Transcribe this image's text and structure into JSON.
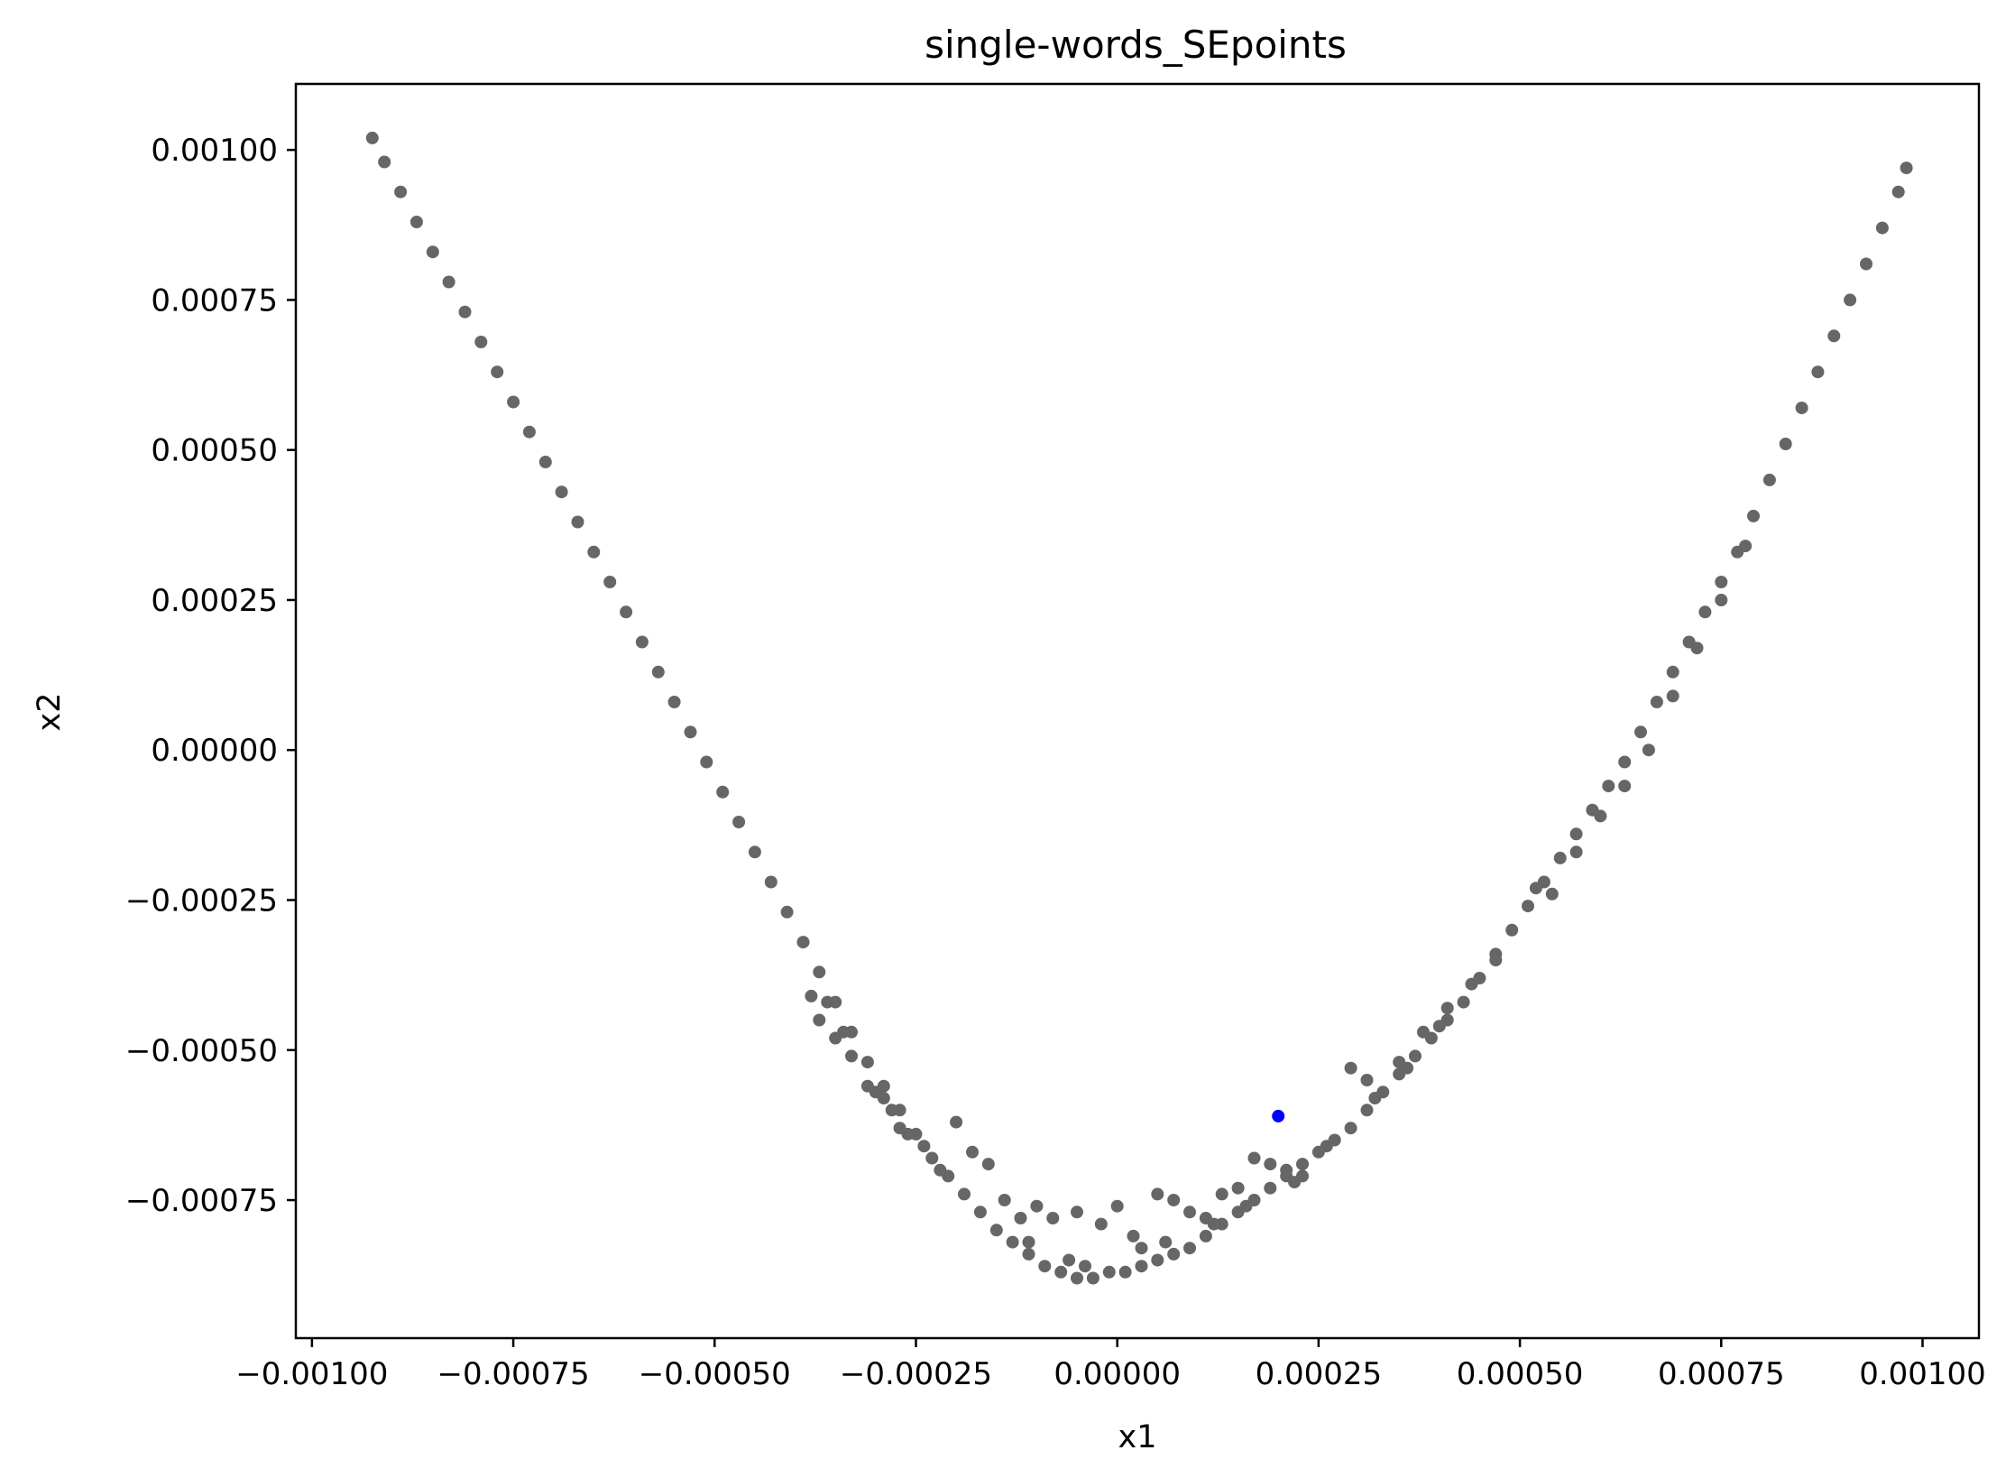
{
  "chart_data": {
    "type": "scatter",
    "title": "single-words_SEpoints",
    "xlabel": "x1",
    "ylabel": "x2",
    "xlim": [
      -0.00102,
      0.00107
    ],
    "ylim": [
      -0.00098,
      0.00111
    ],
    "grid": false,
    "x_ticks": [
      {
        "value": -0.001,
        "label": "−0.00100"
      },
      {
        "value": -0.00075,
        "label": "−0.00075"
      },
      {
        "value": -0.0005,
        "label": "−0.00050"
      },
      {
        "value": -0.00025,
        "label": "−0.00025"
      },
      {
        "value": 0.0,
        "label": "0.00000"
      },
      {
        "value": 0.00025,
        "label": "0.00025"
      },
      {
        "value": 0.0005,
        "label": "0.00050"
      },
      {
        "value": 0.00075,
        "label": "0.00075"
      },
      {
        "value": 0.001,
        "label": "0.00100"
      }
    ],
    "y_ticks": [
      {
        "value": -0.00075,
        "label": "−0.00075"
      },
      {
        "value": -0.0005,
        "label": "−0.00050"
      },
      {
        "value": -0.00025,
        "label": "−0.00025"
      },
      {
        "value": 0.0,
        "label": "0.00000"
      },
      {
        "value": 0.00025,
        "label": "0.00025"
      },
      {
        "value": 0.0005,
        "label": "0.00050"
      },
      {
        "value": 0.00075,
        "label": "0.00075"
      },
      {
        "value": 0.001,
        "label": "0.00100"
      }
    ],
    "series": [
      {
        "color": "#666666",
        "description_points": [
          [
            -0.000925,
            0.00102
          ],
          [
            -0.00091,
            0.00098
          ],
          [
            -0.00089,
            0.00093
          ],
          [
            -0.00087,
            0.00088
          ],
          [
            -0.00085,
            0.00083
          ],
          [
            -0.00083,
            0.00078
          ],
          [
            -0.00081,
            0.00073
          ],
          [
            -0.00079,
            0.00068
          ],
          [
            -0.00077,
            0.00063
          ],
          [
            -0.00075,
            0.00058
          ],
          [
            -0.00073,
            0.00053
          ],
          [
            -0.00071,
            0.00048
          ],
          [
            -0.00069,
            0.00043
          ],
          [
            -0.00067,
            0.00038
          ],
          [
            -0.00065,
            0.00033
          ],
          [
            -0.00063,
            0.00028
          ],
          [
            -0.00061,
            0.00023
          ],
          [
            -0.00059,
            0.00018
          ],
          [
            -0.00057,
            0.00013
          ],
          [
            -0.00055,
            8e-05
          ],
          [
            -0.00053,
            3e-05
          ],
          [
            -0.00051,
            -2e-05
          ],
          [
            -0.00049,
            -7e-05
          ],
          [
            -0.00047,
            -0.00012
          ],
          [
            -0.00045,
            -0.00017
          ],
          [
            -0.00043,
            -0.00022
          ],
          [
            -0.00041,
            -0.00027
          ],
          [
            -0.00039,
            -0.00032
          ],
          [
            -0.00037,
            -0.00037
          ],
          [
            -0.00035,
            -0.00042
          ],
          [
            -0.00033,
            -0.00047
          ],
          [
            -0.00031,
            -0.00052
          ],
          [
            -0.00029,
            -0.00056
          ],
          [
            -0.00027,
            -0.0006
          ],
          [
            -0.00025,
            -0.00064
          ],
          [
            -0.00023,
            -0.00068
          ],
          [
            -0.00021,
            -0.00071
          ],
          [
            -0.00019,
            -0.00074
          ],
          [
            -0.00017,
            -0.00077
          ],
          [
            -0.00015,
            -0.0008
          ],
          [
            -0.00013,
            -0.00082
          ],
          [
            -0.00011,
            -0.00084
          ],
          [
            -9e-05,
            -0.00086
          ],
          [
            -7e-05,
            -0.00087
          ],
          [
            -5e-05,
            -0.00088
          ],
          [
            -3e-05,
            -0.00088
          ],
          [
            -1e-05,
            -0.00087
          ],
          [
            1e-05,
            -0.00087
          ],
          [
            3e-05,
            -0.00086
          ],
          [
            5e-05,
            -0.00085
          ],
          [
            7e-05,
            -0.00084
          ],
          [
            9e-05,
            -0.00083
          ],
          [
            0.00011,
            -0.00081
          ],
          [
            0.00013,
            -0.00079
          ],
          [
            0.00015,
            -0.00077
          ],
          [
            0.00017,
            -0.00075
          ],
          [
            0.00019,
            -0.00073
          ],
          [
            0.00021,
            -0.00071
          ],
          [
            0.00023,
            -0.00069
          ],
          [
            0.00025,
            -0.00067
          ],
          [
            0.00027,
            -0.00065
          ],
          [
            0.00029,
            -0.00063
          ],
          [
            0.00031,
            -0.0006
          ],
          [
            0.00033,
            -0.00057
          ],
          [
            0.00035,
            -0.00054
          ],
          [
            0.00037,
            -0.00051
          ],
          [
            0.00039,
            -0.00048
          ],
          [
            0.00041,
            -0.00045
          ],
          [
            0.00043,
            -0.00042
          ],
          [
            0.00045,
            -0.00038
          ],
          [
            0.00047,
            -0.00034
          ],
          [
            0.00049,
            -0.0003
          ],
          [
            0.00051,
            -0.00026
          ],
          [
            0.00053,
            -0.00022
          ],
          [
            0.00055,
            -0.00018
          ],
          [
            0.00057,
            -0.00014
          ],
          [
            0.00059,
            -0.0001
          ],
          [
            0.00061,
            -6e-05
          ],
          [
            0.00063,
            -2e-05
          ],
          [
            0.00065,
            3e-05
          ],
          [
            0.00067,
            8e-05
          ],
          [
            0.00069,
            0.00013
          ],
          [
            0.00071,
            0.00018
          ],
          [
            0.00073,
            0.00023
          ],
          [
            0.00075,
            0.00028
          ],
          [
            0.00077,
            0.00033
          ],
          [
            0.00079,
            0.00039
          ],
          [
            0.00081,
            0.00045
          ],
          [
            0.00083,
            0.00051
          ],
          [
            0.00085,
            0.00057
          ],
          [
            0.00087,
            0.00063
          ],
          [
            0.00089,
            0.00069
          ],
          [
            0.00091,
            0.00075
          ],
          [
            0.00093,
            0.00081
          ],
          [
            0.00095,
            0.00087
          ],
          [
            0.00097,
            0.00093
          ],
          [
            0.00098,
            0.00097
          ],
          [
            -0.00037,
            -0.00045
          ],
          [
            -0.00035,
            -0.00048
          ],
          [
            -0.00033,
            -0.00051
          ],
          [
            -0.0003,
            -0.00057
          ],
          [
            -0.00028,
            -0.0006
          ],
          [
            -0.00026,
            -0.00064
          ],
          [
            -0.0002,
            -0.00062
          ],
          [
            -0.00018,
            -0.00067
          ],
          [
            -0.00016,
            -0.00069
          ],
          [
            -0.00014,
            -0.00075
          ],
          [
            -0.00012,
            -0.00078
          ],
          [
            -0.0001,
            -0.00076
          ],
          [
            -8e-05,
            -0.00078
          ],
          [
            -5e-05,
            -0.00077
          ],
          [
            -2e-05,
            -0.00079
          ],
          [
            0.0,
            -0.00076
          ],
          [
            2e-05,
            -0.00081
          ],
          [
            5e-05,
            -0.00074
          ],
          [
            7e-05,
            -0.00075
          ],
          [
            9e-05,
            -0.00077
          ],
          [
            0.00011,
            -0.00078
          ],
          [
            0.00013,
            -0.00074
          ],
          [
            0.00015,
            -0.00073
          ],
          [
            0.00017,
            -0.00068
          ],
          [
            0.00019,
            -0.00069
          ],
          [
            0.00021,
            -0.0007
          ],
          [
            0.00023,
            -0.00071
          ],
          [
            0.00029,
            -0.00053
          ],
          [
            0.00031,
            -0.00055
          ],
          [
            0.00035,
            -0.00052
          ],
          [
            0.00038,
            -0.00047
          ],
          [
            0.00041,
            -0.00043
          ],
          [
            0.00044,
            -0.00039
          ],
          [
            0.00047,
            -0.00035
          ],
          [
            0.00052,
            -0.00023
          ],
          [
            0.00054,
            -0.00024
          ],
          [
            0.00057,
            -0.00017
          ],
          [
            0.0006,
            -0.00011
          ],
          [
            0.00063,
            -6e-05
          ],
          [
            0.00066,
            0.0
          ],
          [
            0.00069,
            9e-05
          ],
          [
            0.00072,
            0.00017
          ],
          [
            0.00075,
            0.00025
          ],
          [
            0.00078,
            0.00034
          ],
          [
            -0.00038,
            -0.00041
          ],
          [
            -0.00036,
            -0.00042
          ],
          [
            -0.00034,
            -0.00047
          ],
          [
            -0.00031,
            -0.00056
          ],
          [
            -0.00029,
            -0.00058
          ],
          [
            -0.00027,
            -0.00063
          ],
          [
            -0.00024,
            -0.00066
          ],
          [
            -0.00022,
            -0.0007
          ],
          [
            -0.00011,
            -0.00082
          ],
          [
            -6e-05,
            -0.00085
          ],
          [
            -4e-05,
            -0.00086
          ],
          [
            3e-05,
            -0.00083
          ],
          [
            6e-05,
            -0.00082
          ],
          [
            0.00012,
            -0.00079
          ],
          [
            0.00016,
            -0.00076
          ],
          [
            0.00022,
            -0.00072
          ],
          [
            0.00026,
            -0.00066
          ],
          [
            0.00032,
            -0.00058
          ],
          [
            0.00036,
            -0.00053
          ],
          [
            0.0004,
            -0.00046
          ]
        ]
      },
      {
        "color": "#0000ff",
        "points": [
          [
            0.0002,
            -0.00061
          ]
        ]
      }
    ]
  }
}
